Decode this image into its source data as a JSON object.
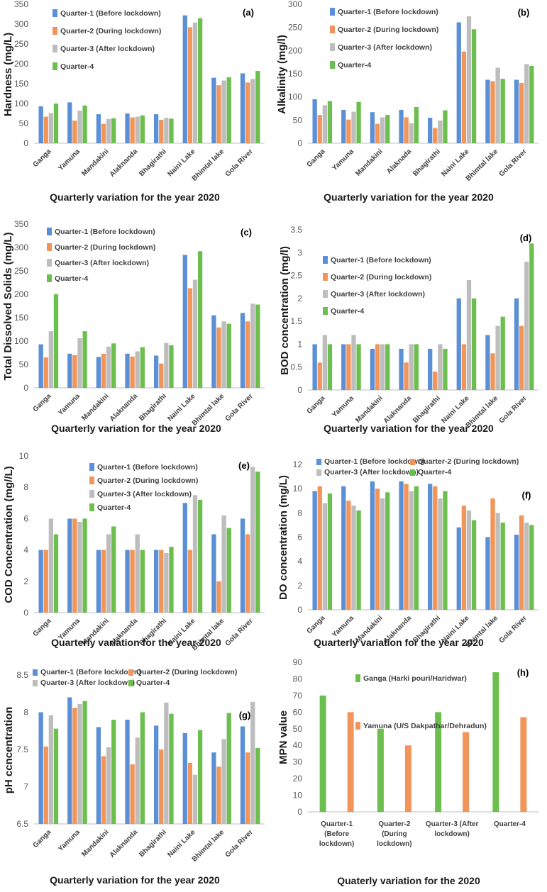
{
  "colors": {
    "q1": "#5b8fd6",
    "q2": "#f2955a",
    "q3": "#bdbdbd",
    "q4": "#6cbf4e",
    "ganga": "#6cbf4e",
    "yamuna": "#f2955a"
  },
  "chart_data": [
    {
      "type": "bar",
      "panel_label": "(a)",
      "ylabel": "Hardness (mg/L)",
      "xlabel": "Quarterly variation for the year 2020",
      "ylim": [
        0,
        350
      ],
      "yticks": [
        "0",
        "50",
        "100",
        "150",
        "200",
        "250",
        "300",
        "350"
      ],
      "categories": [
        "Ganga",
        "Yamuna",
        "Mandakini",
        "Alaknanda",
        "Bhagirathi",
        "Naini Lake",
        "Bhimtal lake",
        "Gola River"
      ],
      "series": [
        {
          "name": "Quarter-1 (Before lockdown)",
          "values": [
            93,
            103,
            73,
            75,
            73,
            322,
            165,
            176
          ]
        },
        {
          "name": "Quarter-2 (During lockdown)",
          "values": [
            67,
            57,
            49,
            65,
            59,
            292,
            146,
            153
          ]
        },
        {
          "name": "Quarter-3 (After lockdown)",
          "values": [
            76,
            82,
            61,
            67,
            64,
            304,
            158,
            162
          ]
        },
        {
          "name": "Quarter-4",
          "values": [
            100,
            95,
            63,
            70,
            62,
            315,
            166,
            182
          ]
        }
      ]
    },
    {
      "type": "bar",
      "panel_label": "(b)",
      "ylabel": "Alkalinity (mg/l)",
      "xlabel": "Quarterly variation for the year 2020",
      "ylim": [
        0,
        300
      ],
      "yticks": [
        "0",
        "50",
        "100",
        "150",
        "200",
        "250",
        "300"
      ],
      "categories": [
        "Ganga",
        "Yamuna",
        "Mandakini",
        "Alaknada",
        "Bhagirathi",
        "Naini Lake",
        "Bhimtal lake",
        "Gola River"
      ],
      "series": [
        {
          "name": "Quarter-1 (Before lockdown)",
          "values": [
            95,
            72,
            67,
            72,
            55,
            261,
            137,
            137
          ]
        },
        {
          "name": "Quarter-2 (During lockdown)",
          "values": [
            61,
            51,
            42,
            56,
            33,
            198,
            134,
            130
          ]
        },
        {
          "name": "Quarter-3 (After lockdown)",
          "values": [
            82,
            68,
            56,
            43,
            49,
            274,
            163,
            171
          ]
        },
        {
          "name": "Quarter-4",
          "values": [
            91,
            89,
            61,
            78,
            71,
            246,
            139,
            167
          ]
        }
      ]
    },
    {
      "type": "bar",
      "panel_label": "(c)",
      "ylabel": "Total Dissolved Solids (mg/L)",
      "xlabel": "Quarterly variation for the year 2020",
      "ylim": [
        0,
        350
      ],
      "yticks": [
        "0",
        "50",
        "100",
        "150",
        "200",
        "250",
        "300",
        "350"
      ],
      "categories": [
        "Ganga",
        "Yamuna",
        "Mandakini",
        "Alaknanda",
        "Bhagirathi",
        "Naini Lake",
        "Bhimtal lake",
        "Gola River"
      ],
      "series": [
        {
          "name": "Quarter-1 (Before lockdown)",
          "values": [
            93,
            73,
            66,
            73,
            69,
            284,
            155,
            160
          ]
        },
        {
          "name": "Quarter-2 (During lockdown)",
          "values": [
            65,
            70,
            73,
            67,
            52,
            213,
            129,
            142
          ]
        },
        {
          "name": "Quarter-3 (After lockdown)",
          "values": [
            121,
            106,
            88,
            78,
            96,
            231,
            142,
            180
          ]
        },
        {
          "name": "Quarter-4",
          "values": [
            200,
            121,
            95,
            87,
            91,
            292,
            137,
            178
          ]
        }
      ]
    },
    {
      "type": "bar",
      "panel_label": "(d)",
      "ylabel": "BOD concentration (mg/l)",
      "xlabel": "Quarterly variation for the year 2020",
      "ylim": [
        0,
        3.5
      ],
      "yticks": [
        "0",
        "0.5",
        "1",
        "1.5",
        "2",
        "2.5",
        "3",
        "3.5"
      ],
      "categories": [
        "Ganga",
        "Yamuna",
        "Mandakini",
        "Alaknanda",
        "Bhagirathi",
        "Naini Lake",
        "Bhimtal lake",
        "Gola River"
      ],
      "series": [
        {
          "name": "Quarter-1 (Before lockdown)",
          "values": [
            1,
            1,
            0.9,
            0.9,
            0.9,
            2,
            1.2,
            2
          ]
        },
        {
          "name": "Quarter-2 (During lockdown)",
          "values": [
            0.6,
            1,
            1,
            0.6,
            0.4,
            1,
            0.8,
            1.4
          ]
        },
        {
          "name": "Quarter-3 (After lockdown)",
          "values": [
            1.2,
            1.2,
            1,
            1,
            1,
            2.4,
            1.4,
            2.8
          ]
        },
        {
          "name": "Quarter-4",
          "values": [
            1,
            1,
            1,
            1,
            0.9,
            2,
            1.6,
            3.2
          ]
        }
      ]
    },
    {
      "type": "bar",
      "panel_label": "(e)",
      "ylabel": "COD Concentration (mg//L)",
      "xlabel": "Quarterly variation for the year 2020",
      "ylim": [
        0,
        10
      ],
      "yticks": [
        "0",
        "2",
        "4",
        "6",
        "8",
        "10"
      ],
      "categories": [
        "Ganga",
        "Yamuna",
        "Mandakini",
        "Alaknanda",
        "Bhagirathi",
        "Naini Lake",
        "Bhimtal lake",
        "Gola River"
      ],
      "series": [
        {
          "name": "Quarter-1 (Before lockdown)",
          "values": [
            4,
            6,
            4,
            4,
            4,
            7,
            5,
            6
          ]
        },
        {
          "name": "Quarter-2 (During lockdown)",
          "values": [
            4,
            6,
            4,
            4,
            4,
            4,
            2,
            5
          ]
        },
        {
          "name": "Quarter-3 (After lockdown)",
          "values": [
            6,
            5.8,
            5,
            5,
            3.8,
            7.5,
            6.2,
            9.3
          ]
        },
        {
          "name": "Quarter-4",
          "values": [
            5,
            6,
            5.5,
            4,
            4.2,
            7.2,
            5.4,
            9
          ]
        }
      ]
    },
    {
      "type": "bar",
      "panel_label": "(f)",
      "ylabel": "DO concentration (mg/L)",
      "xlabel": "Quarterly variation for the year 2020",
      "ylim": [
        0,
        12
      ],
      "yticks": [
        "0",
        "2",
        "4",
        "6",
        "8",
        "10",
        "12"
      ],
      "categories": [
        "Ganga",
        "Yamuna",
        "Mandakini",
        "Alaknanda",
        "Bhagirathi",
        "Naini Lake",
        "Bhimtal lake",
        "Gola River"
      ],
      "series": [
        {
          "name": "Quarter-1 (Before lockdown)",
          "values": [
            9.8,
            10.2,
            10.6,
            10.6,
            10.4,
            6.8,
            6,
            6.2
          ]
        },
        {
          "name": "Quarter-2 (During lockdown)",
          "values": [
            10.2,
            9,
            10,
            10.4,
            10.2,
            8.6,
            9.2,
            7.8
          ]
        },
        {
          "name": "Quarter-3 (After lockdown)",
          "values": [
            8.8,
            8.6,
            9.2,
            9.8,
            9.2,
            8.2,
            8,
            7.2
          ]
        },
        {
          "name": "Quarter-4",
          "values": [
            9.6,
            8.2,
            9.7,
            10.2,
            9.8,
            7.4,
            7.2,
            7
          ]
        }
      ]
    },
    {
      "type": "bar",
      "panel_label": "(g)",
      "ylabel": "pH ccncentration",
      "xlabel": "Quarterly variation for the year 2020",
      "ylim": [
        6.5,
        8.5
      ],
      "yticks": [
        "6.5",
        "7",
        "7.5",
        "8",
        "8.5"
      ],
      "categories": [
        "Ganga",
        "Yamuna",
        "Mandakini",
        "Alaknanda",
        "Bhagirathi",
        "Naini Lake",
        "Bhimtal lake",
        "Gola River"
      ],
      "series": [
        {
          "name": "Quarter-1 (Before lockdown)",
          "values": [
            8.0,
            8.2,
            7.8,
            7.9,
            7.82,
            7.72,
            7.46,
            7.81
          ]
        },
        {
          "name": "Quarter-2 (During lockdown)",
          "values": [
            7.54,
            8.06,
            7.41,
            7.3,
            7.5,
            7.32,
            7.27,
            7.46
          ]
        },
        {
          "name": "Quarter-3 (After lockdown)",
          "values": [
            7.96,
            8.11,
            7.53,
            7.66,
            8.13,
            7.16,
            7.64,
            8.14
          ]
        },
        {
          "name": "Quarter-4",
          "values": [
            7.78,
            8.15,
            7.9,
            8.0,
            7.98,
            7.76,
            7.99,
            7.52
          ]
        }
      ]
    },
    {
      "type": "bar",
      "panel_label": "(h)",
      "ylabel": "MPN value",
      "xlabel": "Quaterly variation for the 2020",
      "ylim": [
        0,
        90
      ],
      "yticks": [
        "0",
        "10",
        "20",
        "30",
        "40",
        "50",
        "60",
        "70",
        "80",
        "90"
      ],
      "categories": [
        "Quarter-1 (Before lockdown)",
        "Quarter-2 (During lockdown)",
        "Quarter-3 (After lockdown)",
        "Quarter-4"
      ],
      "series": [
        {
          "name": "Ganga (Harki pouri/Haridwar)",
          "values": [
            70,
            50,
            60,
            84
          ]
        },
        {
          "name": "Yamuna (U/S Dakpathar/Dehradun)",
          "values": [
            60,
            40,
            48,
            57
          ]
        }
      ]
    }
  ]
}
